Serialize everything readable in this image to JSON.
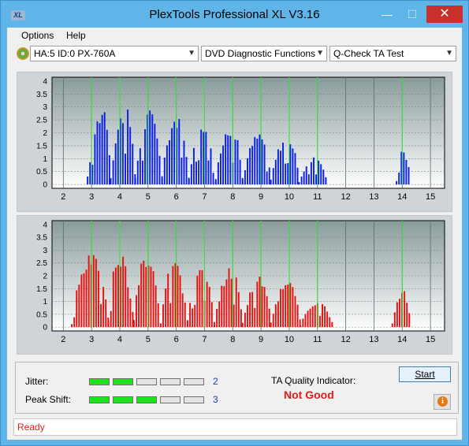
{
  "window": {
    "title": "PlexTools Professional XL V3.16",
    "icon_text": "XL",
    "minimize": "—",
    "maximize": "☐",
    "close": "✕"
  },
  "menu": {
    "items": [
      "Options",
      "Help"
    ]
  },
  "toolbar": {
    "drive": "HA:5 ID:0  PX-760A",
    "function": "DVD Diagnostic Functions",
    "test": "Q-Check TA Test"
  },
  "colors": {
    "series_top": "#0a1ee6",
    "series_bottom": "#e61010",
    "gridline": "#2ee82e",
    "status": "#e21b1b"
  },
  "chart_data": [
    {
      "type": "bar",
      "series_name": "",
      "x_ticks": [
        2,
        3,
        4,
        5,
        6,
        7,
        8,
        9,
        10,
        11,
        12,
        13,
        14,
        15
      ],
      "y_ticks": [
        0,
        0.5,
        1,
        1.5,
        2,
        2.5,
        3,
        3.5,
        4
      ],
      "xlim": [
        1.6,
        15.5
      ],
      "ylim": [
        -0.15,
        4.15
      ],
      "peak_lines": [
        3,
        4,
        5,
        6,
        7,
        8,
        9,
        10,
        11,
        14
      ],
      "groups": [
        {
          "start": 2.86,
          "end": 3.68,
          "peak": 3.15,
          "center": 3.45
        },
        {
          "start": 3.68,
          "end": 4.55,
          "peak": 3.05,
          "center": 4.2
        },
        {
          "start": 4.55,
          "end": 5.5,
          "peak": 2.95,
          "center": 5.1
        },
        {
          "start": 5.5,
          "end": 6.45,
          "peak": 2.75,
          "center": 6.0
        },
        {
          "start": 6.45,
          "end": 7.4,
          "peak": 2.6,
          "center": 6.95
        },
        {
          "start": 7.4,
          "end": 8.35,
          "peak": 2.4,
          "center": 7.95
        },
        {
          "start": 8.35,
          "end": 9.35,
          "peak": 2.05,
          "center": 8.95
        },
        {
          "start": 9.35,
          "end": 10.35,
          "peak": 2.0,
          "center": 9.95
        },
        {
          "start": 10.35,
          "end": 11.35,
          "peak": 1.1,
          "center": 10.95
        },
        {
          "start": 13.8,
          "end": 14.3,
          "peak": 1.5,
          "center": 14.0
        }
      ]
    },
    {
      "type": "bar",
      "series_name": "",
      "x_ticks": [
        2,
        3,
        4,
        5,
        6,
        7,
        8,
        9,
        10,
        11,
        12,
        13,
        14,
        15
      ],
      "y_ticks": [
        0,
        0.5,
        1,
        1.5,
        2,
        2.5,
        3,
        3.5,
        4
      ],
      "xlim": [
        1.6,
        15.5
      ],
      "ylim": [
        -0.15,
        4.15
      ],
      "peak_lines": [
        3,
        4,
        5,
        6,
        7,
        8,
        9,
        10,
        11,
        14
      ],
      "groups": [
        {
          "start": 2.3,
          "end": 3.6,
          "peak": 3.1,
          "center": 3.05
        },
        {
          "start": 3.6,
          "end": 4.5,
          "peak": 3.0,
          "center": 3.95
        },
        {
          "start": 4.5,
          "end": 5.45,
          "peak": 2.9,
          "center": 4.9
        },
        {
          "start": 5.45,
          "end": 6.4,
          "peak": 2.7,
          "center": 5.9
        },
        {
          "start": 6.4,
          "end": 7.35,
          "peak": 2.55,
          "center": 6.85
        },
        {
          "start": 7.35,
          "end": 8.35,
          "peak": 2.35,
          "center": 7.95
        },
        {
          "start": 8.35,
          "end": 9.35,
          "peak": 2.05,
          "center": 9.0
        },
        {
          "start": 9.35,
          "end": 10.4,
          "peak": 1.9,
          "center": 10.0
        },
        {
          "start": 10.4,
          "end": 11.55,
          "peak": 1.05,
          "center": 11.0
        },
        {
          "start": 13.65,
          "end": 14.3,
          "peak": 1.5,
          "center": 14.0
        }
      ]
    }
  ],
  "results": {
    "jitter_label": "Jitter:",
    "jitter_level": 2,
    "jitter_value": "2",
    "peak_shift_label": "Peak Shift:",
    "peak_shift_level": 3,
    "peak_shift_value": "3",
    "segments_total": 5,
    "ta_label": "TA Quality Indicator:",
    "ta_value": "Not Good",
    "start_label": "Start",
    "info_icon": "i"
  },
  "status": {
    "text": "Ready"
  }
}
